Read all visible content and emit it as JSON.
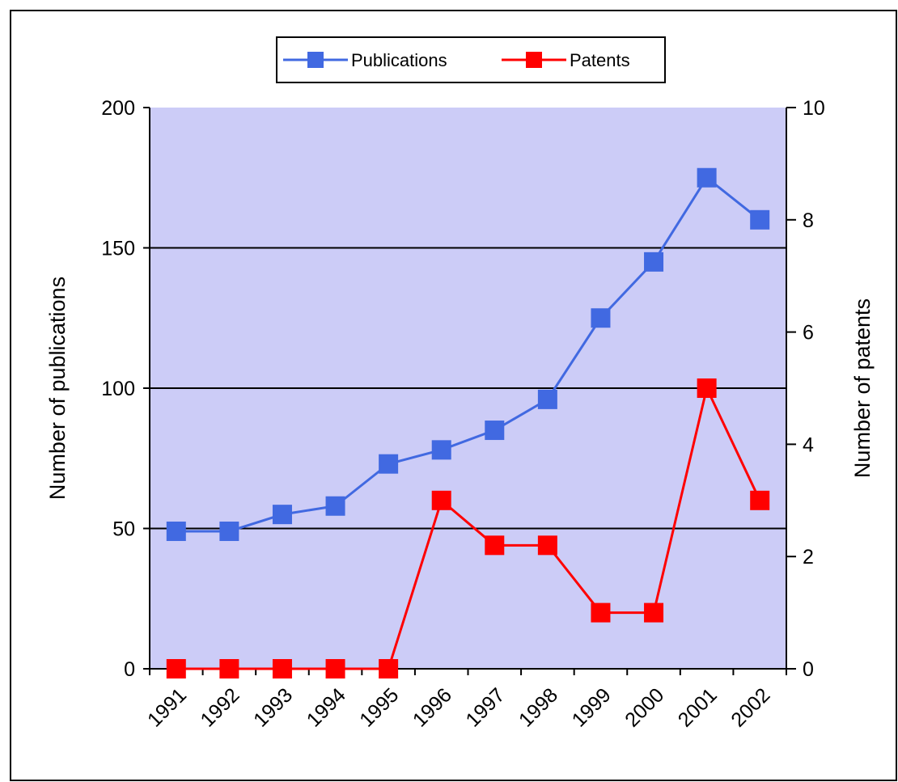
{
  "chart_data": {
    "type": "line",
    "title": "",
    "categories": [
      "1991",
      "1992",
      "1993",
      "1994",
      "1995",
      "1996",
      "1997",
      "1998",
      "1999",
      "2000",
      "2001",
      "2002"
    ],
    "series": [
      {
        "name": "Publications",
        "axis": "left",
        "values": [
          49,
          49,
          55,
          58,
          73,
          78,
          85,
          96,
          125,
          145,
          175,
          160
        ],
        "color": "#4169e1"
      },
      {
        "name": "Patents",
        "axis": "right",
        "values": [
          0,
          0,
          0,
          0,
          0,
          3,
          2.2,
          2.2,
          1,
          1,
          5,
          3
        ],
        "color": "#ff0000"
      }
    ],
    "y_left": {
      "label": "Number of publications",
      "min": 0,
      "max": 200,
      "ticks": [
        0,
        50,
        100,
        150,
        200
      ]
    },
    "y_right": {
      "label": "Number of patents",
      "min": 0,
      "max": 10,
      "ticks": [
        0,
        2,
        4,
        6,
        8,
        10
      ]
    },
    "gridlines": "horizontal",
    "legend_position": "top-center",
    "plot_background": "#ccccf7",
    "border_color": "#000000"
  }
}
